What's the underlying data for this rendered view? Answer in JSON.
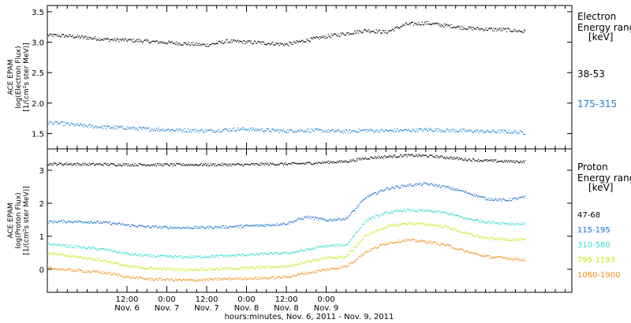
{
  "chart_data": [
    {
      "type": "scatter",
      "ylabel": [
        "ACE EPAM",
        "log(Electron Flux)",
        "[1/(cm²s ster MeV)]"
      ],
      "ylim": [
        1.3,
        3.55
      ],
      "yticks": [
        1.5,
        2.0,
        2.5,
        3.0,
        3.5
      ],
      "ytick_labels": [
        "1.5",
        "2.0",
        "2.5",
        "3.0",
        "3.5"
      ],
      "legend_title": [
        "Electron",
        "Energy range",
        "[keV]"
      ],
      "series": [
        {
          "name": "38-53",
          "color": "#000000",
          "x": [
            0,
            6,
            12,
            18,
            24,
            30,
            36,
            42,
            48,
            54,
            60,
            66,
            72,
            78,
            84,
            90,
            96,
            102,
            108,
            114,
            120,
            126,
            132,
            138,
            144
          ],
          "y": [
            3.12,
            3.11,
            3.08,
            3.05,
            3.04,
            3.02,
            3.0,
            2.98,
            2.96,
            3.02,
            3.01,
            2.99,
            2.97,
            3.04,
            3.1,
            3.15,
            3.2,
            3.17,
            3.3,
            3.32,
            3.28,
            3.24,
            3.22,
            3.21,
            3.18
          ]
        },
        {
          "name": "175-315",
          "color": "#1a7fd4",
          "x": [
            0,
            6,
            12,
            18,
            24,
            30,
            36,
            42,
            48,
            54,
            60,
            66,
            72,
            78,
            84,
            90,
            96,
            102,
            108,
            114,
            120,
            126,
            132,
            138,
            144
          ],
          "y": [
            1.69,
            1.66,
            1.63,
            1.61,
            1.6,
            1.58,
            1.57,
            1.56,
            1.55,
            1.57,
            1.58,
            1.56,
            1.55,
            1.56,
            1.55,
            1.54,
            1.56,
            1.55,
            1.56,
            1.57,
            1.56,
            1.55,
            1.54,
            1.54,
            1.52
          ]
        }
      ]
    },
    {
      "type": "scatter",
      "ylabel": [
        "ACE EPAM",
        "log(Proton Flux)",
        "[1/(cm²s ster MeV)]"
      ],
      "ylim": [
        -0.6,
        3.55
      ],
      "yticks": [
        0,
        1,
        2,
        3
      ],
      "ytick_labels": [
        "0",
        "1",
        "2",
        "3"
      ],
      "legend_title": [
        "Proton",
        "Energy range",
        "[keV]"
      ],
      "series": [
        {
          "name": "47-68",
          "color": "#000000",
          "x": [
            0,
            6,
            12,
            18,
            24,
            30,
            36,
            42,
            48,
            54,
            60,
            66,
            72,
            78,
            84,
            90,
            96,
            102,
            108,
            114,
            120,
            126,
            132,
            138,
            144
          ],
          "y": [
            3.2,
            3.2,
            3.19,
            3.19,
            3.18,
            3.18,
            3.18,
            3.18,
            3.18,
            3.18,
            3.18,
            3.2,
            3.2,
            3.22,
            3.25,
            3.28,
            3.38,
            3.42,
            3.46,
            3.45,
            3.4,
            3.34,
            3.3,
            3.28,
            3.27
          ]
        },
        {
          "name": "115-195",
          "color": "#1a6fd0",
          "x": [
            0,
            6,
            12,
            18,
            24,
            30,
            36,
            42,
            48,
            54,
            60,
            66,
            72,
            78,
            84,
            90,
            96,
            102,
            108,
            114,
            120,
            126,
            132,
            138,
            144
          ],
          "y": [
            1.45,
            1.46,
            1.45,
            1.42,
            1.35,
            1.3,
            1.28,
            1.27,
            1.28,
            1.3,
            1.32,
            1.35,
            1.4,
            1.6,
            1.5,
            1.55,
            2.2,
            2.45,
            2.55,
            2.6,
            2.5,
            2.35,
            2.15,
            2.1,
            2.2
          ]
        },
        {
          "name": "310-580",
          "color": "#30d8d0",
          "x": [
            0,
            6,
            12,
            18,
            24,
            30,
            36,
            42,
            48,
            54,
            60,
            66,
            72,
            78,
            84,
            90,
            96,
            102,
            108,
            114,
            120,
            126,
            132,
            138,
            144
          ],
          "y": [
            0.78,
            0.72,
            0.66,
            0.6,
            0.48,
            0.42,
            0.4,
            0.38,
            0.4,
            0.42,
            0.45,
            0.48,
            0.5,
            0.6,
            0.72,
            0.75,
            1.5,
            1.72,
            1.8,
            1.78,
            1.72,
            1.55,
            1.45,
            1.4,
            1.38
          ]
        },
        {
          "name": "795-1193",
          "color": "#c8e818",
          "x": [
            0,
            6,
            12,
            18,
            24,
            30,
            36,
            42,
            48,
            54,
            60,
            66,
            72,
            78,
            84,
            90,
            96,
            102,
            108,
            114,
            120,
            126,
            132,
            138,
            144
          ],
          "y": [
            0.5,
            0.42,
            0.35,
            0.26,
            0.1,
            0.05,
            0.02,
            0.0,
            0.02,
            0.03,
            0.05,
            0.08,
            0.1,
            0.25,
            0.35,
            0.4,
            1.05,
            1.3,
            1.4,
            1.38,
            1.3,
            1.1,
            0.95,
            0.92,
            0.9
          ]
        },
        {
          "name": "1060-1900",
          "color": "#f08c1c",
          "x": [
            0,
            6,
            12,
            18,
            24,
            30,
            36,
            42,
            48,
            54,
            60,
            66,
            72,
            78,
            84,
            90,
            96,
            102,
            108,
            114,
            120,
            126,
            132,
            138,
            144
          ],
          "y": [
            0.05,
            0.0,
            -0.05,
            -0.1,
            -0.22,
            -0.28,
            -0.3,
            -0.32,
            -0.3,
            -0.28,
            -0.26,
            -0.25,
            -0.22,
            -0.1,
            0.0,
            0.1,
            0.55,
            0.8,
            0.9,
            0.85,
            0.75,
            0.55,
            0.4,
            0.35,
            0.3
          ]
        }
      ]
    }
  ],
  "x_axis": {
    "tick_labels": [
      {
        "time": "12:00",
        "date": "Nov. 6"
      },
      {
        "time": "0:00",
        "date": "Nov. 7"
      },
      {
        "time": "12:00",
        "date": "Nov. 7"
      },
      {
        "time": "0:00",
        "date": "Nov. 8"
      },
      {
        "time": "12:00",
        "date": "Nov. 8"
      },
      {
        "time": "0:00",
        "date": "Nov. 9"
      }
    ],
    "tick_hours": [
      24,
      36,
      48,
      60,
      72,
      84
    ],
    "xlim_hours": [
      0,
      158
    ],
    "xlabel": "hours:minutes, Nov. 6, 2011 - Nov. 9, 2011"
  }
}
